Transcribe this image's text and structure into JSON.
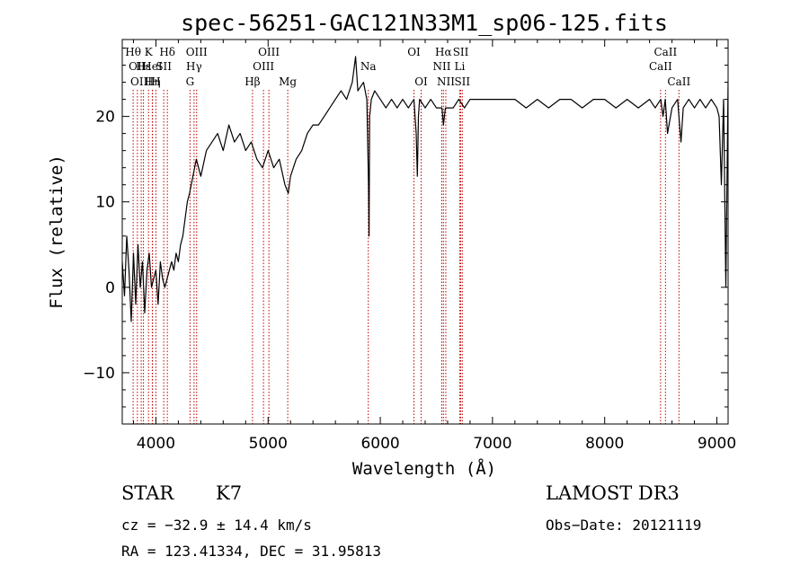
{
  "chart_data": {
    "type": "line",
    "title": "spec-56251-GAC121N33M1_sp06-125.fits",
    "xlabel": "Wavelength (Å)",
    "ylabel": "Flux (relative)",
    "xlim": [
      3700,
      9100
    ],
    "ylim": [
      -16,
      29
    ],
    "xticks": [
      {
        "value": 4000,
        "label": "4000"
      },
      {
        "value": 5000,
        "label": "5000"
      },
      {
        "value": 6000,
        "label": "6000"
      },
      {
        "value": 7000,
        "label": "7000"
      },
      {
        "value": 8000,
        "label": "8000"
      },
      {
        "value": 9000,
        "label": "9000"
      }
    ],
    "yticks": [
      {
        "value": -10,
        "label": "−10"
      },
      {
        "value": 0,
        "label": "0"
      },
      {
        "value": 10,
        "label": "10"
      },
      {
        "value": 20,
        "label": "20"
      }
    ],
    "grid": false,
    "series": [
      {
        "color": "#000000",
        "x": [
          3700,
          3720,
          3740,
          3760,
          3780,
          3800,
          3820,
          3840,
          3860,
          3880,
          3900,
          3920,
          3940,
          3960,
          3980,
          4000,
          4020,
          4040,
          4060,
          4080,
          4100,
          4120,
          4140,
          4160,
          4180,
          4200,
          4220,
          4240,
          4260,
          4280,
          4300,
          4330,
          4360,
          4400,
          4450,
          4500,
          4550,
          4600,
          4650,
          4700,
          4750,
          4800,
          4850,
          4900,
          4950,
          5000,
          5050,
          5100,
          5150,
          5180,
          5200,
          5250,
          5300,
          5350,
          5400,
          5450,
          5500,
          5550,
          5600,
          5650,
          5700,
          5750,
          5780,
          5800,
          5850,
          5880,
          5895,
          5900,
          5905,
          5920,
          5950,
          6000,
          6050,
          6100,
          6150,
          6200,
          6250,
          6300,
          6320,
          6330,
          6340,
          6350,
          6400,
          6450,
          6500,
          6550,
          6563,
          6580,
          6600,
          6650,
          6700,
          6750,
          6800,
          6850,
          6900,
          6950,
          7000,
          7100,
          7200,
          7300,
          7400,
          7500,
          7600,
          7700,
          7800,
          7900,
          8000,
          8100,
          8200,
          8300,
          8400,
          8450,
          8500,
          8520,
          8540,
          8560,
          8600,
          8650,
          8680,
          8700,
          8750,
          8800,
          8850,
          8900,
          8950,
          9000,
          9020,
          9040,
          9060,
          9080,
          9100
        ],
        "y": [
          3,
          -1,
          6,
          2,
          -4,
          4,
          -2,
          5,
          0,
          3,
          -3,
          2,
          4,
          0,
          1,
          2,
          -2,
          3,
          1,
          0,
          1,
          2,
          3,
          2,
          4,
          3,
          5,
          6,
          8,
          10,
          11,
          13,
          15,
          13,
          16,
          17,
          18,
          16,
          19,
          17,
          18,
          16,
          17,
          15,
          14,
          16,
          14,
          15,
          12,
          11,
          13,
          15,
          16,
          18,
          19,
          19,
          20,
          21,
          22,
          23,
          22,
          24,
          27,
          23,
          24,
          22,
          12,
          6,
          20,
          22,
          23,
          22,
          21,
          22,
          21,
          22,
          21,
          22,
          18,
          13,
          20,
          22,
          21,
          22,
          21,
          21,
          19,
          21,
          21,
          21,
          22,
          21,
          22,
          22,
          22,
          22,
          22,
          22,
          22,
          21,
          22,
          21,
          22,
          22,
          21,
          22,
          22,
          21,
          22,
          21,
          22,
          21,
          22,
          20,
          22,
          18,
          21,
          22,
          17,
          21,
          22,
          21,
          22,
          21,
          22,
          21,
          20,
          12,
          22,
          0,
          24
        ]
      }
    ],
    "line_markers": [
      {
        "x": 3797,
        "label": "Hθ",
        "row": 0
      },
      {
        "x": 3835,
        "label": "OII",
        "row": 1
      },
      {
        "x": 3869,
        "label": "OIII",
        "row": 2
      },
      {
        "x": 3889,
        "label": "Hε",
        "row": 1
      },
      {
        "x": 3934,
        "label": "K",
        "row": 0
      },
      {
        "x": 3970,
        "label": "Hη",
        "row": 2
      },
      {
        "x": 3968,
        "label": "HeI",
        "row": 1
      },
      {
        "x": 4000,
        "label": "H",
        "row": 2
      },
      {
        "x": 4070,
        "label": "SII",
        "row": 1
      },
      {
        "x": 4102,
        "label": "Hδ",
        "row": 0
      },
      {
        "x": 4304,
        "label": "G",
        "row": 2
      },
      {
        "x": 4340,
        "label": "Hγ",
        "row": 1
      },
      {
        "x": 4363,
        "label": "OIII",
        "row": 0
      },
      {
        "x": 4861,
        "label": "Hβ",
        "row": 2
      },
      {
        "x": 4959,
        "label": "OIII",
        "row": 1
      },
      {
        "x": 5007,
        "label": "OIII",
        "row": 0
      },
      {
        "x": 5175,
        "label": "Mg",
        "row": 2
      },
      {
        "x": 5893,
        "label": "Na",
        "row": 1
      },
      {
        "x": 6300,
        "label": "OI",
        "row": 0
      },
      {
        "x": 6364,
        "label": "OI",
        "row": 2
      },
      {
        "x": 6548,
        "label": "NII",
        "row": 1
      },
      {
        "x": 6563,
        "label": "Hα",
        "row": 0
      },
      {
        "x": 6584,
        "label": "NII",
        "row": 2
      },
      {
        "x": 6708,
        "label": "Li",
        "row": 1
      },
      {
        "x": 6717,
        "label": "SII",
        "row": 0
      },
      {
        "x": 6731,
        "label": "SII",
        "row": 2
      },
      {
        "x": 8498,
        "label": "CaII",
        "row": 1
      },
      {
        "x": 8542,
        "label": "CaII",
        "row": 0
      },
      {
        "x": 8662,
        "label": "CaII",
        "row": 2
      }
    ]
  },
  "info": {
    "class": "STAR",
    "subclass": "K7",
    "survey": "LAMOST DR3",
    "cz": "cz = −32.9 ± 14.4 km/s",
    "obs_date": "Obs−Date: 20121119",
    "radec": "RA = 123.41334, DEC =  31.95813"
  }
}
